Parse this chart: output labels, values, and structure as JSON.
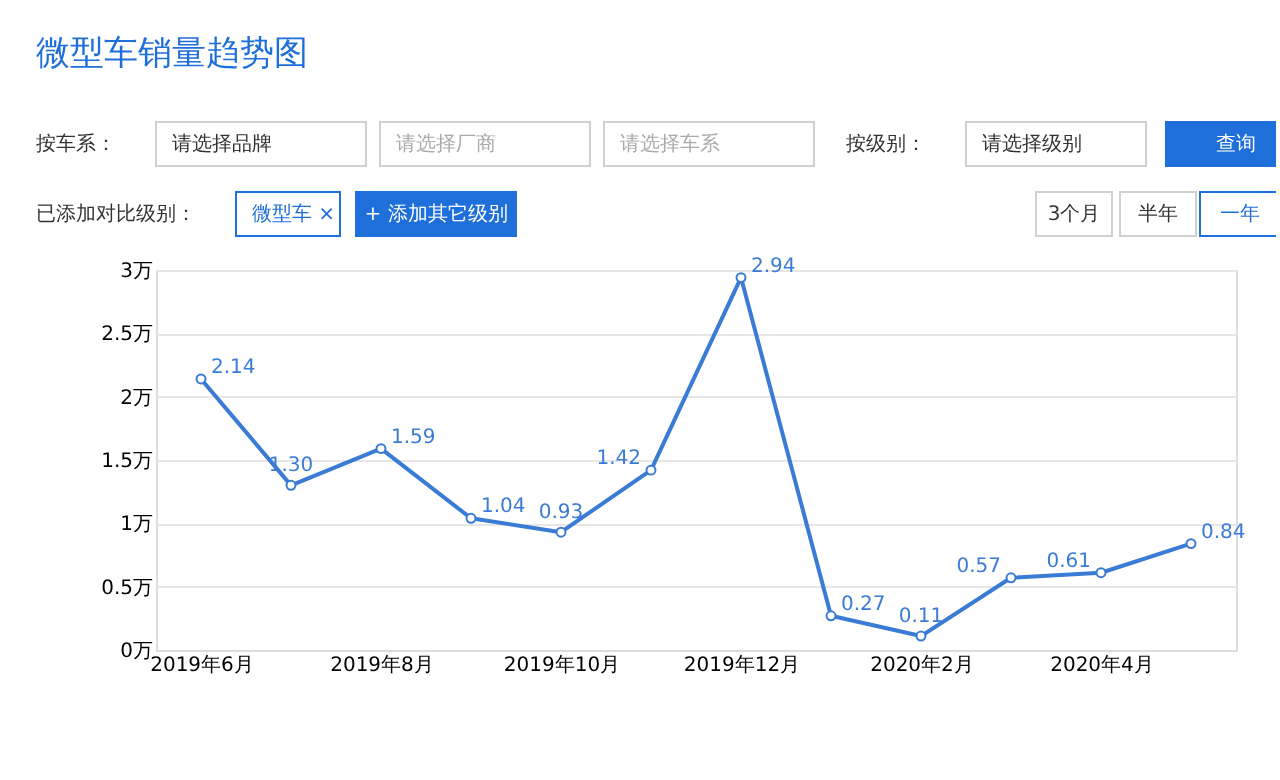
{
  "chart_data": {
    "type": "line",
    "title": "微型车销量趋势图",
    "annotations": [
      "按车系：",
      "请选择品牌",
      "请选择厂商",
      "请选择车系",
      "按级别：",
      "请选择级别",
      "查询",
      "已添加对比级别：",
      "微型车 ×",
      "+ 添加其它级别",
      "3个月",
      "半年",
      "一年"
    ],
    "categories": [
      "2019年6月",
      null,
      "2019年8月",
      null,
      "2019年10月",
      null,
      "2019年12月",
      null,
      "2020年2月",
      null,
      "2020年4月",
      null
    ],
    "series": [
      {
        "color": "#3a7bd5",
        "values": [
          2.14,
          1.3,
          1.59,
          1.04,
          0.93,
          1.42,
          2.94,
          0.27,
          0.11,
          0.57,
          0.61,
          0.84
        ],
        "value_labels": [
          "2.14",
          "1.30",
          "1.59",
          "1.04",
          "0.93",
          "1.42",
          "2.94",
          "0.27",
          "0.11",
          "0.57",
          "0.61",
          "0.84"
        ]
      }
    ],
    "ylim": [
      0,
      3
    ],
    "yticks": [
      {
        "value": 0,
        "label": "0万"
      },
      {
        "value": 0.5,
        "label": "0.5万"
      },
      {
        "value": 1,
        "label": "1万"
      },
      {
        "value": 1.5,
        "label": "1.5万"
      },
      {
        "value": 2,
        "label": "2万"
      },
      {
        "value": 2.5,
        "label": "2.5万"
      },
      {
        "value": 3,
        "label": "3万"
      }
    ],
    "grid": "y",
    "marker": "circle",
    "line_style": "solid"
  }
}
